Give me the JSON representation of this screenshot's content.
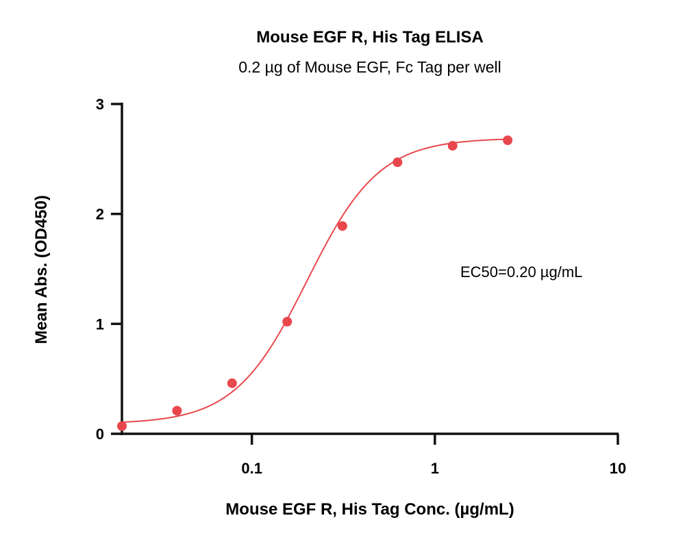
{
  "chart_data": {
    "type": "scatter",
    "title": "Mouse EGF R, His Tag ELISA",
    "subtitle": "0.2 µg of Mouse EGF, Fc Tag per well",
    "xlabel": "Mouse EGF R, His Tag Conc. (µg/mL)",
    "ylabel": "Mean Abs. (OD450)",
    "x_scale": "log",
    "xlim": [
      0.0195,
      10
    ],
    "ylim": [
      0,
      3
    ],
    "x_ticks": [
      0.1,
      1,
      10
    ],
    "x_tick_labels": [
      "0.1",
      "1",
      "10"
    ],
    "y_ticks": [
      0,
      1,
      2,
      3
    ],
    "y_tick_labels": [
      "0",
      "1",
      "2",
      "3"
    ],
    "grid": false,
    "annotation": "EC50=0.20 µg/mL",
    "points": [
      {
        "x": 0.0195,
        "y": 0.07
      },
      {
        "x": 0.039,
        "y": 0.21
      },
      {
        "x": 0.078,
        "y": 0.46
      },
      {
        "x": 0.156,
        "y": 1.02
      },
      {
        "x": 0.3125,
        "y": 1.89
      },
      {
        "x": 0.625,
        "y": 2.47
      },
      {
        "x": 1.25,
        "y": 2.62
      },
      {
        "x": 2.5,
        "y": 2.67
      }
    ],
    "fit_curve": {
      "model": "4PL",
      "bottom": 0.09,
      "top": 2.69,
      "ec50": 0.2,
      "hill": 2.2
    },
    "color": "#e8474c"
  }
}
